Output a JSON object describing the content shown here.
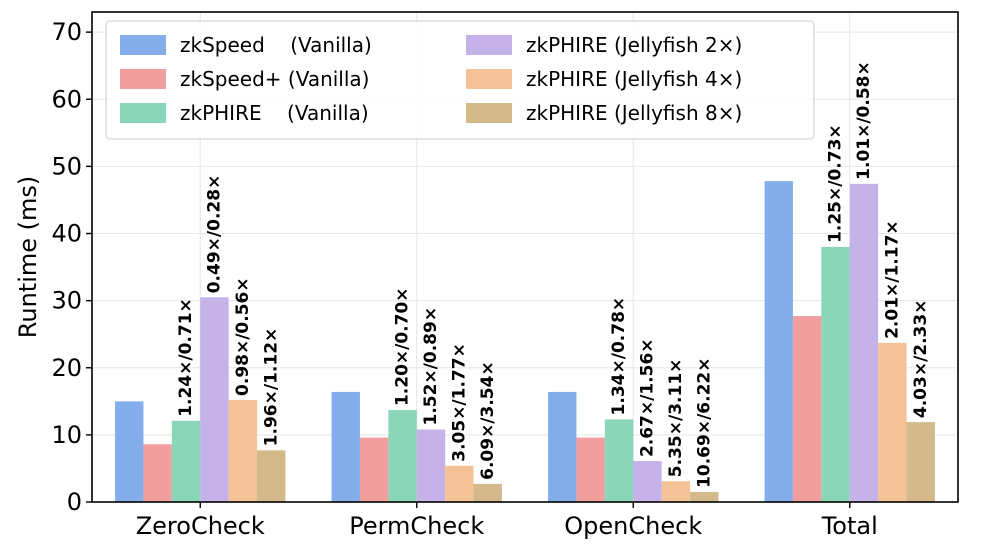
{
  "chart_data": {
    "type": "bar",
    "title": "",
    "xlabel": "",
    "ylabel": "Runtime (ms)",
    "ylim": [
      0,
      73
    ],
    "yticks": [
      0,
      10,
      20,
      30,
      40,
      50,
      60,
      70
    ],
    "grid": true,
    "legend_position": "top-left",
    "categories": [
      "ZeroCheck",
      "PermCheck",
      "OpenCheck",
      "Total"
    ],
    "series": [
      {
        "name": "zkSpeed    (Vanilla)",
        "color": "#84AEEB",
        "values": [
          15.0,
          16.4,
          16.4,
          47.8
        ],
        "labels": [
          "",
          "",
          "",
          ""
        ]
      },
      {
        "name": "zkSpeed+ (Vanilla)",
        "color": "#F09E9E",
        "values": [
          8.6,
          9.6,
          9.6,
          27.7
        ],
        "labels": [
          "",
          "",
          "",
          ""
        ]
      },
      {
        "name": "zkPHIRE    (Vanilla)",
        "color": "#8AD6B9",
        "values": [
          12.1,
          13.7,
          12.3,
          38.0
        ],
        "labels": [
          "1.24×/0.71×",
          "1.20×/0.70×",
          "1.34×/0.78×",
          "1.25×/0.73×"
        ]
      },
      {
        "name": "zkPHIRE (Jellyfish 2×)",
        "color": "#C4B2E8",
        "values": [
          30.5,
          10.8,
          6.1,
          47.4
        ],
        "labels": [
          "0.49×/0.28×",
          "1.52×/0.89×",
          "2.67×/1.56×",
          "1.01×/0.58×"
        ]
      },
      {
        "name": "zkPHIRE (Jellyfish 4×)",
        "color": "#F5C196",
        "values": [
          15.2,
          5.4,
          3.1,
          23.7
        ],
        "labels": [
          "0.98×/0.56×",
          "3.05×/1.77×",
          "5.35×/3.11×",
          "2.01×/1.17×"
        ]
      },
      {
        "name": "zkPHIRE (Jellyfish 8×)",
        "color": "#D4BA8A",
        "values": [
          7.7,
          2.7,
          1.5,
          11.9
        ],
        "labels": [
          "1.96×/1.12×",
          "6.09×/3.54×",
          "10.69×/6.22×",
          "4.03×/2.33×"
        ]
      }
    ]
  }
}
